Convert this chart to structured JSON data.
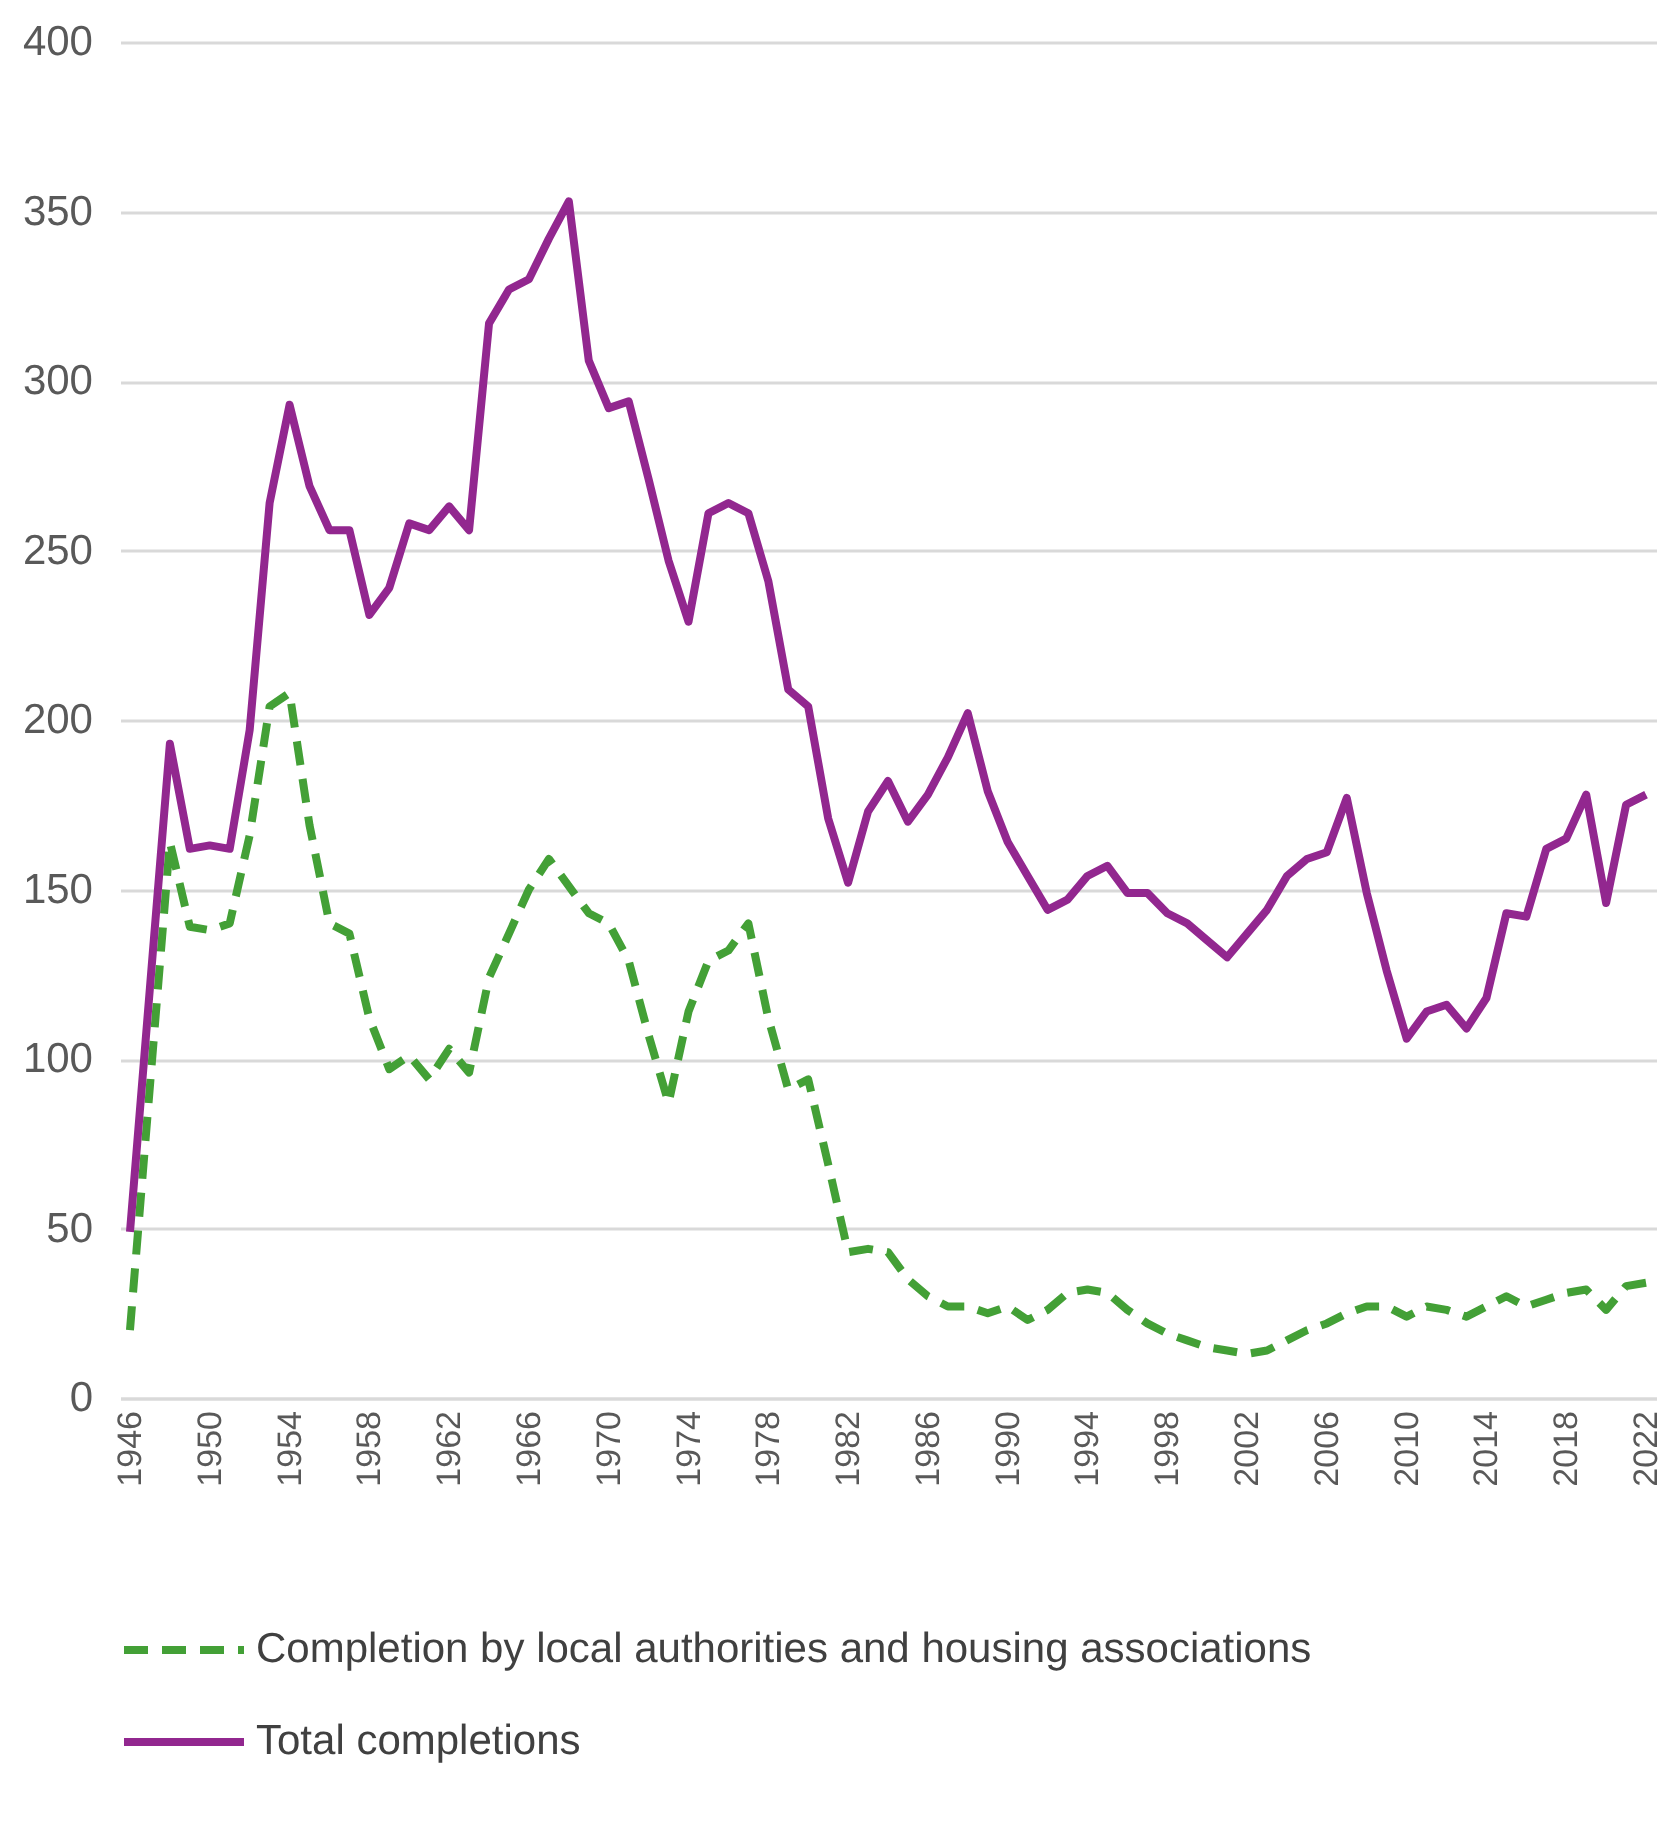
{
  "chart_data": {
    "type": "line",
    "x": [
      1946,
      1947,
      1948,
      1949,
      1950,
      1951,
      1952,
      1953,
      1954,
      1955,
      1956,
      1957,
      1958,
      1959,
      1960,
      1961,
      1962,
      1963,
      1964,
      1965,
      1966,
      1967,
      1968,
      1969,
      1970,
      1971,
      1972,
      1973,
      1974,
      1975,
      1976,
      1977,
      1978,
      1979,
      1980,
      1981,
      1982,
      1983,
      1984,
      1985,
      1986,
      1987,
      1988,
      1989,
      1990,
      1991,
      1992,
      1993,
      1994,
      1995,
      1996,
      1997,
      1998,
      1999,
      2000,
      2001,
      2002,
      2003,
      2004,
      2005,
      2006,
      2007,
      2008,
      2009,
      2010,
      2011,
      2012,
      2013,
      2014,
      2015,
      2016,
      2017,
      2018,
      2019,
      2020,
      2021,
      2022
    ],
    "series": [
      {
        "name": "Completion by local authorities and housing associations",
        "color": "#43a036",
        "line_style": "dashed",
        "values": [
          20,
          92,
          164,
          139,
          138,
          140,
          166,
          204,
          208,
          169,
          140,
          137,
          112,
          97,
          101,
          94,
          103,
          96,
          124,
          137,
          150,
          159,
          151,
          143,
          140,
          129,
          107,
          87,
          114,
          129,
          132,
          140,
          112,
          91,
          94,
          69,
          43,
          44,
          43,
          35,
          30,
          27,
          27,
          25,
          27,
          23,
          26,
          31,
          32,
          31,
          26,
          22,
          19,
          17,
          15,
          14,
          13,
          14,
          17,
          20,
          22,
          25,
          27,
          27,
          24,
          27,
          26,
          24,
          27,
          30,
          27,
          29,
          31,
          32,
          26,
          33,
          34
        ]
      },
      {
        "name": "Total completions",
        "color": "#92278f",
        "line_style": "solid",
        "values": [
          49,
          121,
          193,
          162,
          163,
          162,
          197,
          264,
          293,
          269,
          256,
          256,
          231,
          239,
          258,
          256,
          263,
          256,
          317,
          327,
          330,
          342,
          353,
          306,
          292,
          294,
          271,
          247,
          229,
          261,
          264,
          261,
          241,
          209,
          204,
          171,
          152,
          173,
          182,
          170,
          178,
          189,
          202,
          179,
          164,
          154,
          144,
          147,
          154,
          157,
          149,
          149,
          143,
          140,
          135,
          130,
          137,
          144,
          154,
          159,
          161,
          177,
          149,
          126,
          106,
          114,
          116,
          109,
          118,
          143,
          142,
          162,
          165,
          178,
          146,
          175,
          178
        ]
      }
    ],
    "xlim": [
      1945.5,
      2022.5
    ],
    "xticks": [
      1946,
      1950,
      1954,
      1958,
      1962,
      1966,
      1970,
      1974,
      1978,
      1982,
      1986,
      1990,
      1994,
      1998,
      2002,
      2006,
      2010,
      2014,
      2018,
      2022
    ],
    "ylim": [
      0,
      400
    ],
    "yticks": [
      0,
      50,
      100,
      150,
      200,
      250,
      300,
      350,
      400
    ],
    "grid": "y",
    "legend": "bottom"
  }
}
